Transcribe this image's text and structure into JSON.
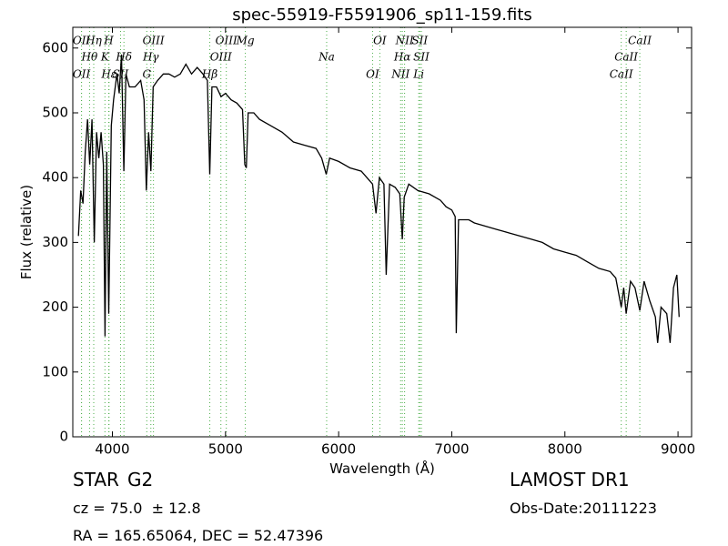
{
  "chart_data": {
    "type": "line",
    "title": "spec-55919-F5591906_sp11-159.fits",
    "x_label": "Wavelength (Å)",
    "y_label": "Flux (relative)",
    "xlim": [
      3650,
      9120
    ],
    "ylim": [
      0,
      632
    ],
    "xticks": [
      4000,
      5000,
      6000,
      7000,
      8000,
      9000
    ],
    "yticks": [
      0,
      100,
      200,
      300,
      400,
      500,
      600
    ],
    "x": [
      3700,
      3720,
      3740,
      3760,
      3780,
      3800,
      3820,
      3840,
      3860,
      3880,
      3900,
      3920,
      3935,
      3950,
      3968,
      3990,
      4010,
      4040,
      4060,
      4080,
      4101,
      4120,
      4150,
      4200,
      4250,
      4280,
      4300,
      4320,
      4340,
      4360,
      4400,
      4450,
      4500,
      4550,
      4600,
      4650,
      4700,
      4750,
      4800,
      4840,
      4861,
      4880,
      4920,
      4960,
      5000,
      5050,
      5100,
      5150,
      5170,
      5184,
      5200,
      5250,
      5300,
      5400,
      5500,
      5600,
      5700,
      5800,
      5850,
      5890,
      5920,
      6000,
      6100,
      6200,
      6250,
      6300,
      6330,
      6360,
      6400,
      6420,
      6450,
      6500,
      6540,
      6563,
      6580,
      6620,
      6700,
      6800,
      6900,
      6950,
      7000,
      7030,
      7040,
      7060,
      7150,
      7200,
      7300,
      7400,
      7500,
      7600,
      7700,
      7800,
      7900,
      8000,
      8100,
      8200,
      8300,
      8400,
      8450,
      8498,
      8520,
      8542,
      8580,
      8620,
      8662,
      8700,
      8750,
      8800,
      8820,
      8850,
      8900,
      8930,
      8960,
      8990,
      9010
    ],
    "series": [
      {
        "name": "flux",
        "color": "#000000",
        "values": [
          310,
          380,
          360,
          440,
          490,
          420,
          490,
          300,
          470,
          430,
          470,
          420,
          155,
          440,
          190,
          480,
          520,
          560,
          530,
          590,
          410,
          560,
          540,
          540,
          550,
          520,
          380,
          470,
          410,
          540,
          550,
          560,
          560,
          555,
          560,
          575,
          560,
          570,
          560,
          550,
          405,
          540,
          540,
          525,
          530,
          520,
          515,
          505,
          420,
          415,
          500,
          500,
          490,
          480,
          470,
          455,
          450,
          445,
          430,
          405,
          430,
          425,
          415,
          410,
          400,
          390,
          345,
          400,
          390,
          250,
          390,
          385,
          375,
          305,
          370,
          390,
          380,
          375,
          365,
          355,
          350,
          340,
          160,
          335,
          335,
          330,
          325,
          320,
          315,
          310,
          305,
          300,
          290,
          285,
          280,
          270,
          260,
          255,
          245,
          200,
          230,
          190,
          240,
          230,
          195,
          240,
          210,
          185,
          145,
          200,
          190,
          145,
          230,
          250,
          185
        ]
      }
    ],
    "line_color": "#4daf4a",
    "lines": [
      {
        "wavelength": 3727,
        "label": "OII"
      },
      {
        "wavelength": 3798,
        "label": "Hθ"
      },
      {
        "wavelength": 3727,
        "label": "OII"
      },
      {
        "wavelength": 3835,
        "label": "Hη"
      },
      {
        "wavelength": 3934,
        "label": "K"
      },
      {
        "wavelength": 3970,
        "label": "Hε"
      },
      {
        "wavelength": 3968,
        "label": "H"
      },
      {
        "wavelength": 4102,
        "label": "Hδ"
      },
      {
        "wavelength": 4072,
        "label": "SII"
      },
      {
        "wavelength": 4363,
        "label": "OIII"
      },
      {
        "wavelength": 4340,
        "label": "Hγ"
      },
      {
        "wavelength": 4304,
        "label": "G"
      },
      {
        "wavelength": 5007,
        "label": "OIII"
      },
      {
        "wavelength": 4959,
        "label": "OIII"
      },
      {
        "wavelength": 4861,
        "label": "Hβ"
      },
      {
        "wavelength": 5175,
        "label": "Mg"
      },
      {
        "wavelength": 5894,
        "label": "Na"
      },
      {
        "wavelength": 6300,
        "label": "OI"
      },
      {
        "wavelength": 6364,
        "label": "OI"
      },
      {
        "wavelength": 6563,
        "label": "Hα"
      },
      {
        "wavelength": 6548,
        "label": "NII"
      },
      {
        "wavelength": 6583,
        "label": "NII"
      },
      {
        "wavelength": 6731,
        "label": "SII"
      },
      {
        "wavelength": 6708,
        "label": "Li"
      },
      {
        "wavelength": 6717,
        "label": "SII"
      },
      {
        "wavelength": 8542,
        "label": "CaII"
      },
      {
        "wavelength": 8498,
        "label": "CaII"
      },
      {
        "wavelength": 8662,
        "label": "CaII"
      }
    ]
  },
  "footer": {
    "class": "STAR",
    "subclass": "G2",
    "survey": "LAMOST DR1",
    "cz": "cz = 75.0  ± 12.8",
    "obs_date": "Obs-Date:20111223",
    "coords": "RA = 165.65064, DEC = 52.47396"
  }
}
